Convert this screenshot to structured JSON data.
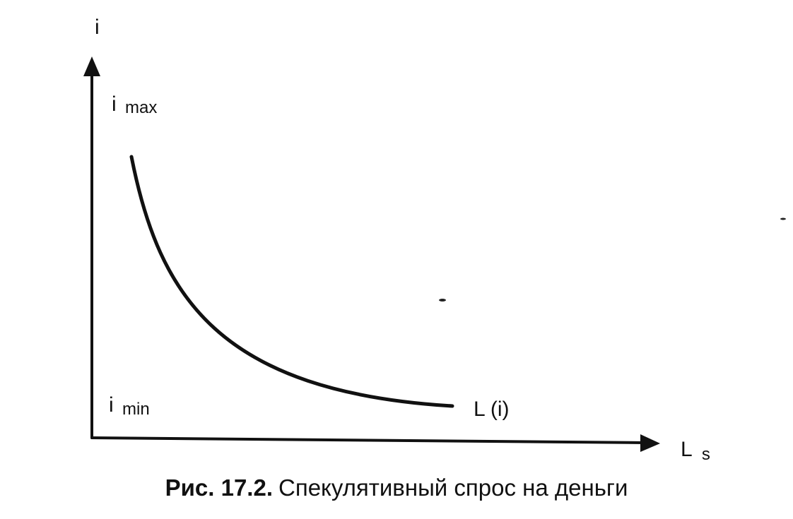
{
  "axes": {
    "y_label": "i",
    "x_label_main": "L",
    "x_label_sub": "s"
  },
  "levels": {
    "max_main": "i",
    "max_sub": "max",
    "min_main": "i",
    "min_sub": "min"
  },
  "curve": {
    "label": "L (i)",
    "shape": "decreasing convex hyperbola from i max toward i min"
  },
  "caption": {
    "number": "Рис. 17.2.",
    "text": "Спекулятивный спрос на деньги"
  }
}
